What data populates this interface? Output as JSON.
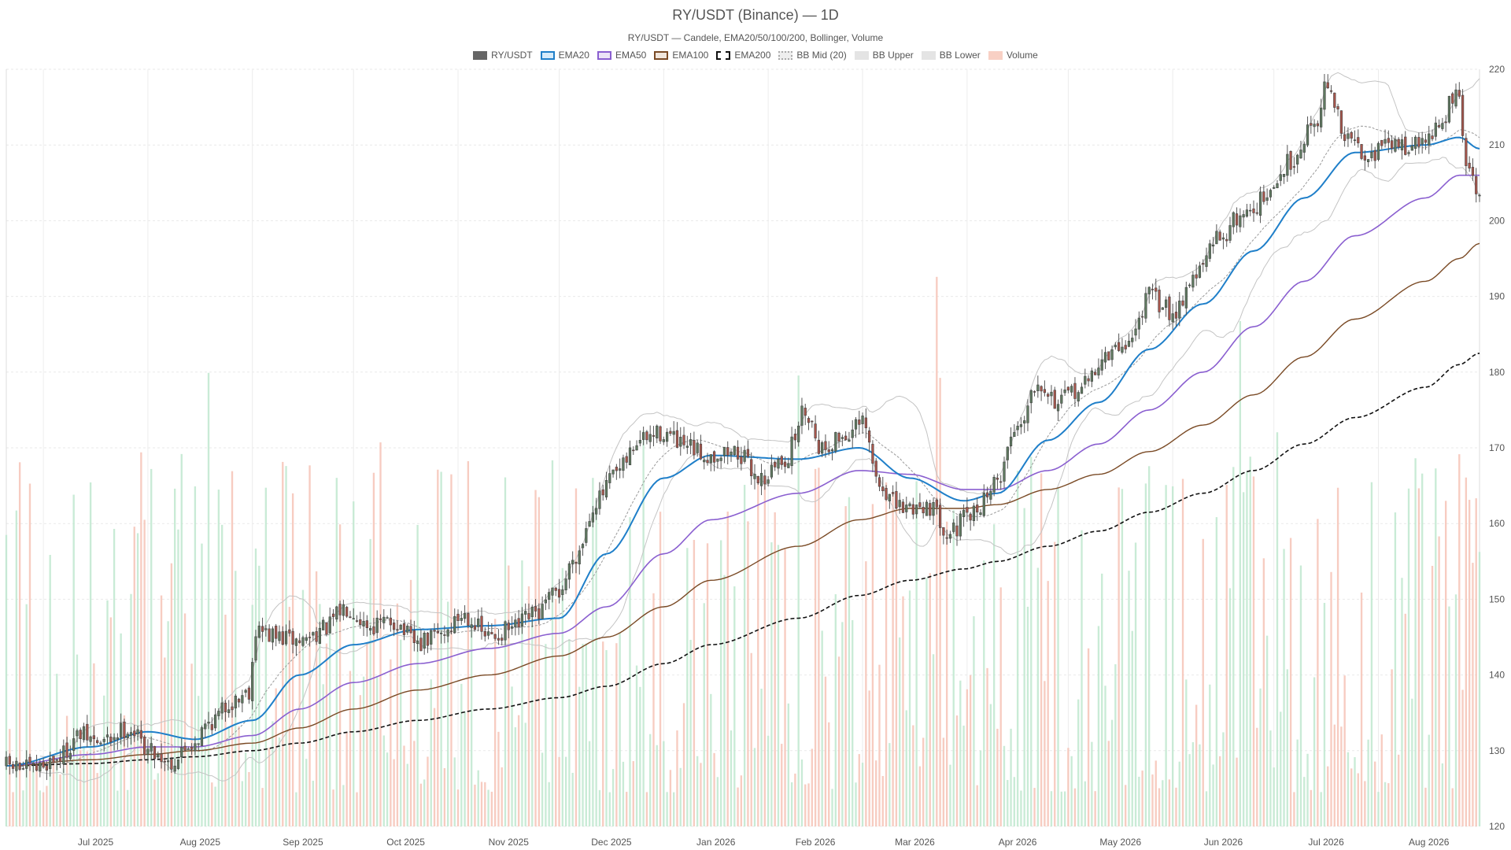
{
  "chart_data": {
    "type": "candlestick",
    "title": "RY/USDT (Binance) — 1D",
    "subtitle": "RY/USDT — Candele, EMA20/50/100/200, Bollinger, Volume",
    "legend": [
      {
        "label": "RY/USDT",
        "style": "solid",
        "fill": "#666666",
        "stroke": "#666666"
      },
      {
        "label": "EMA20",
        "style": "solid",
        "fill": "#d6ebfa",
        "stroke": "#1f7fc9"
      },
      {
        "label": "EMA50",
        "style": "solid",
        "fill": "#ece4f7",
        "stroke": "#8a5fd0"
      },
      {
        "label": "EMA100",
        "style": "solid",
        "fill": "#f1e6dc",
        "stroke": "#7a4a25"
      },
      {
        "label": "EMA200",
        "style": "dashed",
        "fill": "#ffffff",
        "stroke": "#111111"
      },
      {
        "label": "BB Mid (20)",
        "style": "dotted",
        "fill": "#eeeeee",
        "stroke": "#aaaaaa"
      },
      {
        "label": "BB Upper",
        "style": "solid",
        "fill": "#e4e4e4",
        "stroke": "#e4e4e4"
      },
      {
        "label": "BB Lower",
        "style": "solid",
        "fill": "#e4e4e4",
        "stroke": "#e4e4e4"
      },
      {
        "label": "Volume",
        "style": "solid",
        "fill": "#f8d0c4",
        "stroke": "#f8d0c4"
      }
    ],
    "x_axis": {
      "start_date": "2025-06-20",
      "end_date": "2026-08-31",
      "ticks": [
        "Jul 2025",
        "Aug 2025",
        "Sep 2025",
        "Oct 2025",
        "Nov 2025",
        "Dec 2025",
        "Jan 2026",
        "Feb 2026",
        "Mar 2026",
        "Apr 2026",
        "May 2026",
        "Jun 2026",
        "Jul 2026",
        "Aug 2026"
      ]
    },
    "y_axis": {
      "position": "right",
      "ylim": [
        120,
        220
      ],
      "ticks": [
        120,
        130,
        140,
        150,
        160,
        170,
        180,
        190,
        200,
        210,
        220
      ]
    },
    "grid": true,
    "colors": {
      "up": "#5f7a60",
      "down": "#a9564c",
      "volume_up": "#bfe8cf",
      "volume_down": "#f6c3b6",
      "ema20": "#1f7fc9",
      "ema50": "#8a5fd0",
      "ema100": "#7a4a25",
      "ema200": "#111111",
      "bb_band": "#c4c4c4",
      "bb_mid": "#999999"
    },
    "price_anchors": [
      [
        "2025-06-20",
        128
      ],
      [
        "2025-06-28",
        127.5
      ],
      [
        "2025-07-05",
        129
      ],
      [
        "2025-07-12",
        132
      ],
      [
        "2025-07-18",
        131
      ],
      [
        "2025-07-26",
        133
      ],
      [
        "2025-08-02",
        130
      ],
      [
        "2025-08-08",
        128.5
      ],
      [
        "2025-08-14",
        131
      ],
      [
        "2025-08-20",
        134
      ],
      [
        "2025-08-26",
        136.5
      ],
      [
        "2025-08-31",
        138
      ],
      [
        "2025-09-02",
        146
      ],
      [
        "2025-09-08",
        145
      ],
      [
        "2025-09-15",
        144.5
      ],
      [
        "2025-09-22",
        146
      ],
      [
        "2025-09-29",
        149
      ],
      [
        "2025-10-06",
        146.5
      ],
      [
        "2025-10-13",
        147
      ],
      [
        "2025-10-20",
        144
      ],
      [
        "2025-10-27",
        145.5
      ],
      [
        "2025-11-03",
        148
      ],
      [
        "2025-11-10",
        145
      ],
      [
        "2025-11-17",
        146
      ],
      [
        "2025-11-24",
        148
      ],
      [
        "2025-12-01",
        151
      ],
      [
        "2025-12-06",
        156
      ],
      [
        "2025-12-12",
        163
      ],
      [
        "2025-12-18",
        166.5
      ],
      [
        "2025-12-25",
        171
      ],
      [
        "2026-01-01",
        172
      ],
      [
        "2026-01-07",
        170
      ],
      [
        "2026-01-14",
        169
      ],
      [
        "2026-01-22",
        169.5
      ],
      [
        "2026-01-30",
        166
      ],
      [
        "2026-02-06",
        168.5
      ],
      [
        "2026-02-12",
        175
      ],
      [
        "2026-02-17",
        170
      ],
      [
        "2026-02-23",
        171.5
      ],
      [
        "2026-03-01",
        173
      ],
      [
        "2026-03-06",
        165
      ],
      [
        "2026-03-12",
        162
      ],
      [
        "2026-03-20",
        162.5
      ],
      [
        "2026-03-27",
        159
      ],
      [
        "2026-04-02",
        161
      ],
      [
        "2026-04-09",
        165
      ],
      [
        "2026-04-16",
        173
      ],
      [
        "2026-04-22",
        179
      ],
      [
        "2026-04-28",
        176
      ],
      [
        "2026-05-05",
        178
      ],
      [
        "2026-05-12",
        182
      ],
      [
        "2026-05-19",
        184
      ],
      [
        "2026-05-25",
        190
      ],
      [
        "2026-06-01",
        188
      ],
      [
        "2026-06-08",
        193
      ],
      [
        "2026-06-15",
        198
      ],
      [
        "2026-06-22",
        201
      ],
      [
        "2026-06-29",
        203
      ],
      [
        "2026-07-06",
        208
      ],
      [
        "2026-07-13",
        213
      ],
      [
        "2026-07-17",
        218
      ],
      [
        "2026-07-22",
        211
      ],
      [
        "2026-07-29",
        209
      ],
      [
        "2026-08-05",
        210
      ],
      [
        "2026-08-12",
        210
      ],
      [
        "2026-08-19",
        212
      ],
      [
        "2026-08-24",
        217
      ],
      [
        "2026-08-28",
        206
      ],
      [
        "2026-08-31",
        203
      ]
    ],
    "ema_anchors": {
      "ema20": [
        [
          "2025-06-20",
          128
        ],
        [
          "2025-07-15",
          130.5
        ],
        [
          "2025-08-01",
          132.5
        ],
        [
          "2025-08-15",
          131.5
        ],
        [
          "2025-09-01",
          134
        ],
        [
          "2025-09-15",
          140
        ],
        [
          "2025-10-01",
          144
        ],
        [
          "2025-10-20",
          146
        ],
        [
          "2025-11-10",
          146.5
        ],
        [
          "2025-12-01",
          147.5
        ],
        [
          "2025-12-15",
          156
        ],
        [
          "2026-01-01",
          166
        ],
        [
          "2026-01-15",
          169
        ],
        [
          "2026-02-10",
          168.5
        ],
        [
          "2026-02-28",
          170
        ],
        [
          "2026-03-15",
          166
        ],
        [
          "2026-03-31",
          163
        ],
        [
          "2026-04-10",
          164
        ],
        [
          "2026-04-25",
          171
        ],
        [
          "2026-05-10",
          176
        ],
        [
          "2026-05-25",
          183
        ],
        [
          "2026-06-10",
          189
        ],
        [
          "2026-06-25",
          196
        ],
        [
          "2026-07-10",
          203
        ],
        [
          "2026-07-25",
          209
        ],
        [
          "2026-08-15",
          210
        ],
        [
          "2026-08-25",
          211
        ],
        [
          "2026-08-31",
          209.5
        ]
      ],
      "ema50": [
        [
          "2025-06-20",
          128
        ],
        [
          "2025-07-15",
          129.5
        ],
        [
          "2025-08-01",
          130.5
        ],
        [
          "2025-08-15",
          130.5
        ],
        [
          "2025-09-01",
          132
        ],
        [
          "2025-09-15",
          135.5
        ],
        [
          "2025-10-01",
          139
        ],
        [
          "2025-10-20",
          141.5
        ],
        [
          "2025-11-10",
          143.5
        ],
        [
          "2025-12-01",
          145.5
        ],
        [
          "2025-12-15",
          149
        ],
        [
          "2026-01-01",
          156
        ],
        [
          "2026-01-15",
          160.5
        ],
        [
          "2026-02-10",
          164
        ],
        [
          "2026-02-28",
          167
        ],
        [
          "2026-03-15",
          166.5
        ],
        [
          "2026-03-31",
          164.5
        ],
        [
          "2026-04-10",
          164.5
        ],
        [
          "2026-04-25",
          167
        ],
        [
          "2026-05-10",
          170.5
        ],
        [
          "2026-05-25",
          175
        ],
        [
          "2026-06-10",
          180
        ],
        [
          "2026-06-25",
          186
        ],
        [
          "2026-07-10",
          192
        ],
        [
          "2026-07-25",
          198
        ],
        [
          "2026-08-15",
          203
        ],
        [
          "2026-08-25",
          206
        ],
        [
          "2026-08-31",
          206
        ]
      ],
      "ema100": [
        [
          "2025-06-20",
          128
        ],
        [
          "2025-07-15",
          128.8
        ],
        [
          "2025-08-01",
          129.5
        ],
        [
          "2025-08-15",
          130
        ],
        [
          "2025-09-01",
          131
        ],
        [
          "2025-09-15",
          133
        ],
        [
          "2025-10-01",
          135.5
        ],
        [
          "2025-10-20",
          138
        ],
        [
          "2025-11-10",
          140
        ],
        [
          "2025-12-01",
          142.5
        ],
        [
          "2025-12-15",
          145
        ],
        [
          "2026-01-01",
          149
        ],
        [
          "2026-01-15",
          152.5
        ],
        [
          "2026-02-10",
          157
        ],
        [
          "2026-02-28",
          160.5
        ],
        [
          "2026-03-15",
          162
        ],
        [
          "2026-03-31",
          162
        ],
        [
          "2026-04-10",
          162.5
        ],
        [
          "2026-04-25",
          164.5
        ],
        [
          "2026-05-10",
          166.5
        ],
        [
          "2026-05-25",
          169.5
        ],
        [
          "2026-06-10",
          173
        ],
        [
          "2026-06-25",
          177
        ],
        [
          "2026-07-10",
          182
        ],
        [
          "2026-07-25",
          187
        ],
        [
          "2026-08-15",
          192
        ],
        [
          "2026-08-25",
          195
        ],
        [
          "2026-08-31",
          197
        ]
      ],
      "ema200": [
        [
          "2025-06-20",
          128
        ],
        [
          "2025-07-15",
          128.3
        ],
        [
          "2025-08-01",
          128.8
        ],
        [
          "2025-08-15",
          129.2
        ],
        [
          "2025-09-01",
          130
        ],
        [
          "2025-09-15",
          131
        ],
        [
          "2025-10-01",
          132.5
        ],
        [
          "2025-10-20",
          134
        ],
        [
          "2025-11-10",
          135.5
        ],
        [
          "2025-12-01",
          137
        ],
        [
          "2025-12-15",
          138.5
        ],
        [
          "2026-01-01",
          141.5
        ],
        [
          "2026-01-15",
          144
        ],
        [
          "2026-02-10",
          147.5
        ],
        [
          "2026-02-28",
          150.5
        ],
        [
          "2026-03-15",
          152.5
        ],
        [
          "2026-03-31",
          154
        ],
        [
          "2026-04-10",
          155
        ],
        [
          "2026-04-25",
          157
        ],
        [
          "2026-05-10",
          159
        ],
        [
          "2026-05-25",
          161.5
        ],
        [
          "2026-06-10",
          164
        ],
        [
          "2026-06-25",
          167
        ],
        [
          "2026-07-10",
          170.5
        ],
        [
          "2026-07-25",
          174
        ],
        [
          "2026-08-15",
          178
        ],
        [
          "2026-08-25",
          181
        ],
        [
          "2026-08-31",
          182.5
        ]
      ]
    },
    "volume_axis_max": 1000
  }
}
